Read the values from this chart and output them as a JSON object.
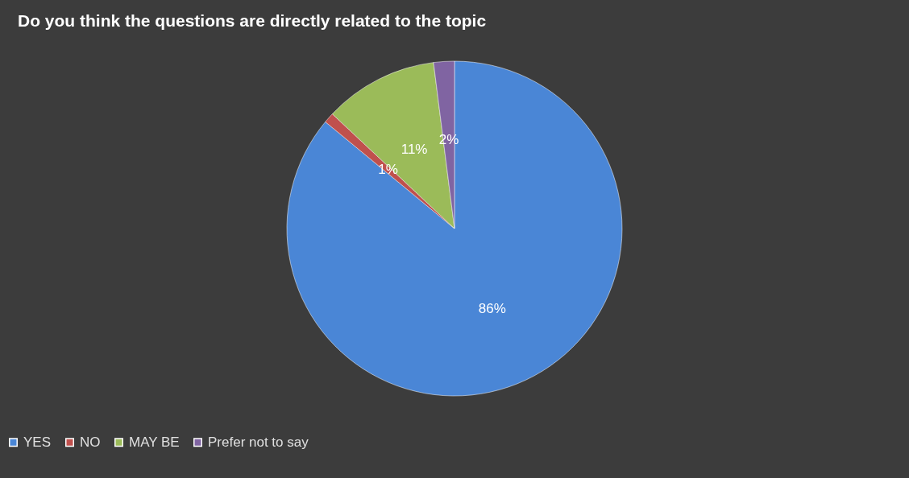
{
  "chart_data": {
    "type": "pie",
    "title": "Do you think the questions are directly related to the topic",
    "categories": [
      "YES",
      "NO",
      "MAY BE",
      "Prefer not to say"
    ],
    "values": [
      86,
      1,
      11,
      2
    ],
    "colors": [
      "#4a86d6",
      "#c0504d",
      "#9bbb59",
      "#8064a2"
    ],
    "value_labels": [
      "86%",
      "1%",
      "11%",
      "2%"
    ],
    "legend": "bottom"
  }
}
